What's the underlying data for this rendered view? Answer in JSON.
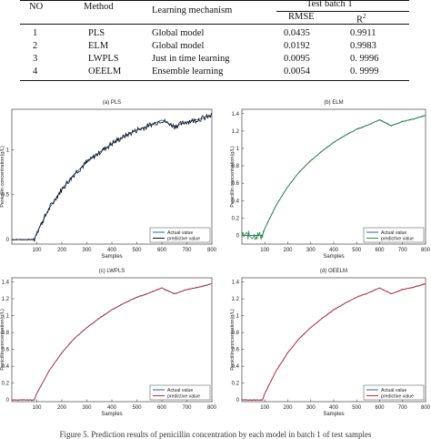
{
  "table": {
    "headers": {
      "no": "NO",
      "method": "Method",
      "mechanism": "Learning mechanism",
      "group": "Test batch 1",
      "rmse": "RMSE",
      "r2_base": "R",
      "r2_sup": "2"
    },
    "rows": [
      {
        "no": "1",
        "method": "PLS",
        "mechanism": "Global model",
        "rmse": "0.0435",
        "r2": "0.9911"
      },
      {
        "no": "2",
        "method": "ELM",
        "mechanism": "Global model",
        "rmse": "0.0192",
        "r2": "0.9983"
      },
      {
        "no": "3",
        "method": "LWPLS",
        "mechanism": "Just in time learning",
        "rmse": "0.0095",
        "r2": "0. 9996"
      },
      {
        "no": "4",
        "method": "OEELM",
        "mechanism": "Ensemble learning",
        "rmse": "0.0054",
        "r2": "0. 9999"
      }
    ]
  },
  "chart_data": [
    {
      "type": "line",
      "title": "(a) PLS",
      "xlabel": "Samples",
      "ylabel": "Penicillin concentration(g/L)",
      "xlim": [
        0,
        800
      ],
      "ylim": [
        -0.05,
        1.45
      ],
      "xticks": [
        "100",
        "200",
        "300",
        "400",
        "500",
        "600",
        "700",
        "800"
      ],
      "yticks": [
        "0",
        "0.5",
        "1"
      ],
      "ytick_values": [
        0,
        0.5,
        1
      ],
      "legend_position": "bottom-right",
      "series": [
        {
          "name": "Actual value",
          "color": "#2a5fbf"
        },
        {
          "name": "predictive value",
          "color": "#111111"
        }
      ],
      "noise": {
        "start": 85,
        "end": 800,
        "amp": 0.03
      }
    },
    {
      "type": "line",
      "title": "(b) ELM",
      "xlabel": "Samples",
      "ylabel": "Penicillin concentration(g/L)",
      "xlim": [
        0,
        800
      ],
      "ylim": [
        -0.1,
        1.45
      ],
      "xticks": [
        "100",
        "200",
        "300",
        "400",
        "500",
        "600",
        "700",
        "800"
      ],
      "yticks": [
        "0",
        "0.2",
        "0.4",
        "0.6",
        "0.8",
        "1",
        "1.2",
        "1.4"
      ],
      "ytick_values": [
        0,
        0.2,
        0.4,
        0.6,
        0.8,
        1,
        1.2,
        1.4
      ],
      "legend_position": "bottom-right",
      "series": [
        {
          "name": "Actual value",
          "color": "#2a5fbf"
        },
        {
          "name": "predictive value",
          "color": "#2e8b3a"
        }
      ],
      "noise": {
        "start": 0,
        "end": 95,
        "amp": 0.05
      }
    },
    {
      "type": "line",
      "title": "(c) LWPLS",
      "xlabel": "Samples",
      "ylabel": "Penicillin concentration(g/L)",
      "xlim": [
        0,
        800
      ],
      "ylim": [
        -0.02,
        1.45
      ],
      "xticks": [
        "100",
        "200",
        "300",
        "400",
        "500",
        "600",
        "700",
        "800"
      ],
      "yticks": [
        "0",
        "0.2",
        "0.4",
        "0.6",
        "0.8",
        "1",
        "1.2",
        "1.4"
      ],
      "ytick_values": [
        0,
        0.2,
        0.4,
        0.6,
        0.8,
        1,
        1.2,
        1.4
      ],
      "legend_position": "bottom-right",
      "series": [
        {
          "name": "Actual value",
          "color": "#2a5fbf"
        },
        {
          "name": "predictive value",
          "color": "#c0303a"
        }
      ],
      "noise": {
        "start": 0,
        "end": 0,
        "amp": 0
      }
    },
    {
      "type": "line",
      "title": "(d) OEELM",
      "xlabel": "Samples",
      "ylabel": "Penicillin concentration(g/L)",
      "xlim": [
        0,
        800
      ],
      "ylim": [
        -0.02,
        1.45
      ],
      "xticks": [
        "100",
        "200",
        "300",
        "400",
        "500",
        "600",
        "700",
        "800"
      ],
      "yticks": [
        "0",
        "0.2",
        "0.4",
        "0.6",
        "0.8",
        "1",
        "1.2",
        "1.4"
      ],
      "ytick_values": [
        0,
        0.2,
        0.4,
        0.6,
        0.8,
        1,
        1.2,
        1.4
      ],
      "legend_position": "bottom-right",
      "series": [
        {
          "name": "Actual value",
          "color": "#2a5fbf"
        },
        {
          "name": "predictive value",
          "color": "#d42a2a"
        }
      ],
      "noise": {
        "start": 0,
        "end": 0,
        "amp": 0
      }
    }
  ],
  "actual_curve": {
    "x": [
      0,
      90,
      100,
      150,
      200,
      250,
      300,
      350,
      400,
      450,
      500,
      550,
      600,
      650,
      700,
      750,
      800
    ],
    "y": [
      0,
      0,
      0.08,
      0.35,
      0.56,
      0.73,
      0.86,
      0.97,
      1.07,
      1.15,
      1.22,
      1.27,
      1.33,
      1.26,
      1.31,
      1.34,
      1.38
    ]
  },
  "caption": "Figure 5. Prediction results of penicillin concentration by each model in batch 1 of test samples"
}
